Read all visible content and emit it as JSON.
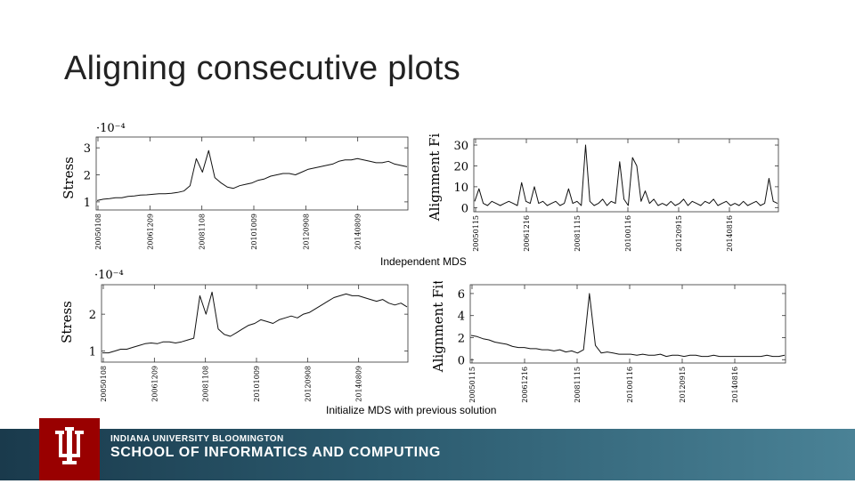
{
  "slide": {
    "title": "Aligning consecutive plots",
    "caption_top": "Independent MDS",
    "caption_bottom": "Initialize MDS with previous solution"
  },
  "footer": {
    "line1": "INDIANA UNIVERSITY BLOOMINGTON",
    "line2": "SCHOOL OF INFORMATICS AND COMPUTING",
    "logo_icon": "iu-trident-icon",
    "logo_color": "#990000"
  },
  "chart_data": [
    {
      "id": "top-left",
      "type": "line",
      "ylabel": "Stress",
      "exponent": "·10⁻⁴",
      "yticks": [
        1,
        2,
        3
      ],
      "ylim": [
        0.7,
        3.4
      ],
      "xtick_labels": [
        "20050108",
        "20061209",
        "20081108",
        "20101009",
        "20120908",
        "20140809"
      ],
      "series": {
        "name": "Stress",
        "values": [
          1.05,
          1.1,
          1.12,
          1.15,
          1.15,
          1.2,
          1.22,
          1.25,
          1.26,
          1.28,
          1.3,
          1.3,
          1.32,
          1.35,
          1.4,
          1.6,
          2.6,
          2.1,
          2.9,
          1.9,
          1.7,
          1.55,
          1.5,
          1.6,
          1.65,
          1.7,
          1.8,
          1.85,
          1.95,
          2.0,
          2.05,
          2.05,
          2.0,
          2.1,
          2.2,
          2.25,
          2.3,
          2.35,
          2.4,
          2.5,
          2.55,
          2.55,
          2.6,
          2.55,
          2.5,
          2.45,
          2.45,
          2.5,
          2.4,
          2.35,
          2.3
        ]
      }
    },
    {
      "id": "top-right",
      "type": "line",
      "ylabel": "Alignment Fit",
      "exponent": "",
      "yticks": [
        0,
        10,
        20,
        30
      ],
      "ylim": [
        -2,
        33
      ],
      "xtick_labels": [
        "20050115",
        "20061216",
        "20081115",
        "20100116",
        "20120915",
        "20140816"
      ],
      "series": {
        "name": "Alignment Fit",
        "values": [
          3,
          9,
          2,
          1,
          3,
          2,
          1,
          2,
          3,
          2,
          1,
          12,
          3,
          2,
          10,
          2,
          3,
          1,
          2,
          3,
          1,
          2,
          9,
          2,
          3,
          1,
          30,
          3,
          1,
          2,
          4,
          1,
          3,
          2,
          22,
          4,
          1,
          24,
          20,
          3,
          8,
          2,
          4,
          1,
          2,
          1,
          3,
          1,
          2,
          4,
          1,
          3,
          2,
          1,
          3,
          2,
          4,
          1,
          2,
          3,
          1,
          2,
          1,
          3,
          1,
          2,
          3,
          1,
          2,
          14,
          3,
          2
        ]
      }
    },
    {
      "id": "bottom-left",
      "type": "line",
      "ylabel": "Stress",
      "exponent": "·10⁻⁴",
      "yticks": [
        1,
        2
      ],
      "ylim": [
        0.7,
        2.8
      ],
      "xtick_labels": [
        "20050108",
        "20061209",
        "20081108",
        "20101009",
        "20120908",
        "20140809"
      ],
      "series": {
        "name": "Stress",
        "values": [
          0.95,
          0.95,
          1.0,
          1.05,
          1.05,
          1.1,
          1.15,
          1.2,
          1.22,
          1.2,
          1.25,
          1.25,
          1.22,
          1.25,
          1.3,
          1.35,
          2.5,
          2.0,
          2.6,
          1.6,
          1.45,
          1.4,
          1.5,
          1.6,
          1.7,
          1.75,
          1.85,
          1.8,
          1.75,
          1.85,
          1.9,
          1.95,
          1.9,
          2.0,
          2.05,
          2.15,
          2.25,
          2.35,
          2.45,
          2.5,
          2.55,
          2.5,
          2.5,
          2.45,
          2.4,
          2.35,
          2.4,
          2.3,
          2.25,
          2.3,
          2.2
        ]
      }
    },
    {
      "id": "bottom-right",
      "type": "line",
      "ylabel": "Alignment Fit",
      "exponent": "",
      "yticks": [
        0,
        2,
        4,
        6
      ],
      "ylim": [
        -0.3,
        6.8
      ],
      "xtick_labels": [
        "20050115",
        "20061216",
        "20081115",
        "20100116",
        "20120915",
        "20140816"
      ],
      "series": {
        "name": "Alignment Fit",
        "values": [
          2.2,
          2.1,
          1.9,
          1.8,
          1.6,
          1.5,
          1.4,
          1.2,
          1.1,
          1.1,
          1.0,
          1.0,
          0.9,
          0.9,
          0.8,
          0.9,
          0.7,
          0.8,
          0.6,
          0.9,
          6.0,
          1.3,
          0.6,
          0.7,
          0.6,
          0.5,
          0.5,
          0.5,
          0.4,
          0.5,
          0.4,
          0.4,
          0.5,
          0.3,
          0.4,
          0.4,
          0.3,
          0.4,
          0.4,
          0.3,
          0.3,
          0.4,
          0.3,
          0.3,
          0.3,
          0.3,
          0.3,
          0.3,
          0.3,
          0.3,
          0.4,
          0.3,
          0.3,
          0.4
        ]
      }
    }
  ]
}
